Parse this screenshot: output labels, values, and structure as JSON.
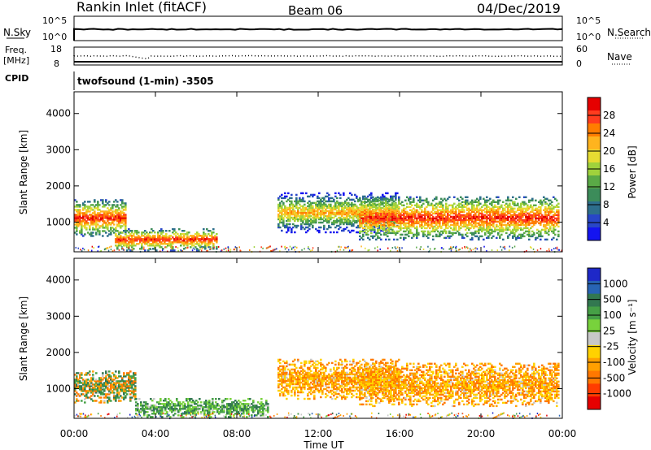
{
  "header": {
    "station": "Rankin Inlet (fitACF)",
    "beam": "Beam 06",
    "date": "04/Dec/2019"
  },
  "strip": {
    "nsky_label": "N.Sky",
    "nsky_ticks": [
      "10^5",
      "10^0"
    ],
    "nsearch_label": "N.Search",
    "nsearch_ticks": [
      "10^5",
      "10^0"
    ],
    "freq_label": "Freq.",
    "freq_unit": "[MHz]",
    "freq_ticks": [
      "18",
      "8"
    ],
    "nave_label": "Nave",
    "nave_ticks": [
      "60",
      "0"
    ],
    "cpid_label": "CPID",
    "cpid_text": "twofsound (1-min) -3505"
  },
  "chart_data": [
    {
      "type": "heatmap",
      "panel": "power",
      "ylabel": "Slant Range [km]",
      "yticks": [
        1000,
        2000,
        3000,
        4000
      ],
      "ylim": [
        180,
        4600
      ],
      "xlim_hours": [
        0,
        24
      ],
      "colorbar": {
        "label": "Power [dB]",
        "ticks": [
          "28",
          "24",
          "20",
          "16",
          "12",
          "8",
          "4"
        ],
        "colors": [
          "#e60000",
          "#ff3c1e",
          "#ff7d00",
          "#ffb41e",
          "#e6dc32",
          "#a0d23c",
          "#5aaa46",
          "#3c8c5a",
          "#2d6e8c",
          "#2846c8",
          "#1414f0"
        ]
      },
      "regions": [
        {
          "t": [
            0.0,
            2.5
          ],
          "r": [
            600,
            1600
          ],
          "level": "high"
        },
        {
          "t": [
            2.0,
            7.0
          ],
          "r": [
            200,
            800
          ],
          "level": "high"
        },
        {
          "t": [
            10.0,
            16.0
          ],
          "r": [
            700,
            1800
          ],
          "level": "medium"
        },
        {
          "t": [
            14.0,
            23.8
          ],
          "r": [
            500,
            1700
          ],
          "level": "high"
        }
      ]
    },
    {
      "type": "heatmap",
      "panel": "velocity",
      "ylabel": "Slant Range [km]",
      "yticks": [
        1000,
        2000,
        3000,
        4000
      ],
      "ylim": [
        180,
        4600
      ],
      "xlim_hours": [
        0,
        24
      ],
      "xlabel": "Time UT",
      "xtick_labels": [
        "00:00",
        "04:00",
        "08:00",
        "12:00",
        "16:00",
        "20:00",
        "00:00"
      ],
      "colorbar": {
        "label": "Velocity [m s⁻¹]",
        "ticks": [
          "1000",
          "500",
          "100",
          "25",
          "-25",
          "-100",
          "-500",
          "-1000"
        ],
        "colors": [
          "#1e28c8",
          "#2864b4",
          "#327850",
          "#46a046",
          "#78d23c",
          "#c8c8c8",
          "#ffd200",
          "#ffa000",
          "#ff7800",
          "#ff3c00",
          "#e60000"
        ]
      },
      "regions": [
        {
          "t": [
            0.0,
            3.0
          ],
          "r": [
            600,
            1500
          ],
          "level": "mixed-green-orange"
        },
        {
          "t": [
            3.0,
            9.5
          ],
          "r": [
            200,
            700
          ],
          "level": "green"
        },
        {
          "t": [
            10.0,
            16.0
          ],
          "r": [
            700,
            1800
          ],
          "level": "orange"
        },
        {
          "t": [
            14.0,
            23.8
          ],
          "r": [
            500,
            1700
          ],
          "level": "orange"
        }
      ]
    }
  ]
}
